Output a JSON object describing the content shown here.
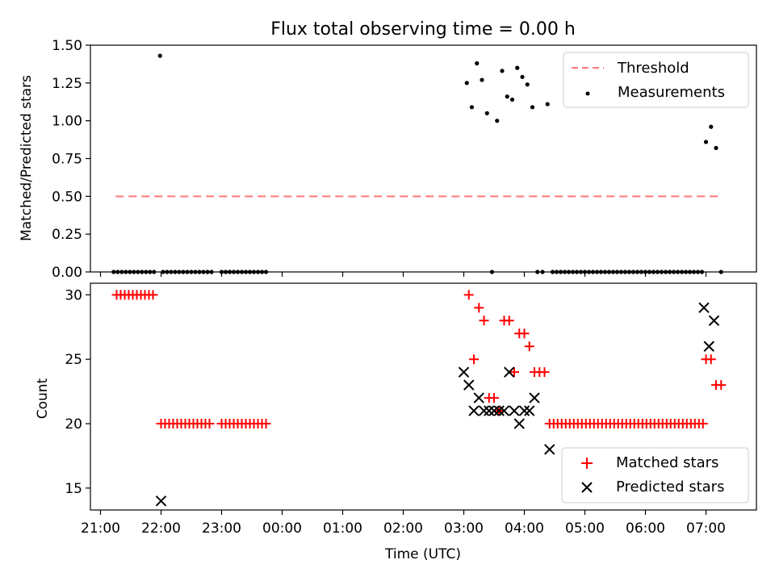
{
  "chart_data": [
    {
      "type": "scatter",
      "title": "Flux total observing time = 0.00 h",
      "xlabel": "",
      "ylabel": "Matched/Predicted stars",
      "ylim": [
        0,
        1.5
      ],
      "yticks": [
        "0.00",
        "0.25",
        "0.50",
        "0.75",
        "1.00",
        "1.25",
        "1.50"
      ],
      "legend_position": "top-right",
      "threshold": {
        "name": "Threshold",
        "value": 0.5,
        "x_start": "21:15",
        "x_end": "07:15",
        "color": "#ff7777"
      },
      "series": [
        {
          "name": "Measurements",
          "color": "#000000",
          "points": [
            [
              "21:13",
              0
            ],
            [
              "21:17",
              0
            ],
            [
              "21:21",
              0
            ],
            [
              "21:25",
              0
            ],
            [
              "21:29",
              0
            ],
            [
              "21:33",
              0
            ],
            [
              "21:37",
              0
            ],
            [
              "21:41",
              0
            ],
            [
              "21:45",
              0
            ],
            [
              "21:49",
              0
            ],
            [
              "21:53",
              0
            ],
            [
              "21:59",
              1.43
            ],
            [
              "22:02",
              0
            ],
            [
              "22:06",
              0
            ],
            [
              "22:10",
              0
            ],
            [
              "22:14",
              0
            ],
            [
              "22:18",
              0
            ],
            [
              "22:22",
              0
            ],
            [
              "22:26",
              0
            ],
            [
              "22:30",
              0
            ],
            [
              "22:34",
              0
            ],
            [
              "22:38",
              0
            ],
            [
              "22:42",
              0
            ],
            [
              "22:46",
              0
            ],
            [
              "22:50",
              0
            ],
            [
              "23:00",
              0
            ],
            [
              "23:04",
              0
            ],
            [
              "23:08",
              0
            ],
            [
              "23:12",
              0
            ],
            [
              "23:16",
              0
            ],
            [
              "23:20",
              0
            ],
            [
              "23:24",
              0
            ],
            [
              "23:28",
              0
            ],
            [
              "23:32",
              0
            ],
            [
              "23:36",
              0
            ],
            [
              "23:40",
              0
            ],
            [
              "23:44",
              0
            ],
            [
              "03:03",
              1.25
            ],
            [
              "03:08",
              1.09
            ],
            [
              "03:13",
              1.38
            ],
            [
              "03:18",
              1.27
            ],
            [
              "03:23",
              1.05
            ],
            [
              "03:28",
              0
            ],
            [
              "03:33",
              1.0
            ],
            [
              "03:38",
              1.33
            ],
            [
              "03:43",
              1.16
            ],
            [
              "03:48",
              1.14
            ],
            [
              "03:53",
              1.35
            ],
            [
              "03:58",
              1.29
            ],
            [
              "04:03",
              1.24
            ],
            [
              "04:08",
              1.09
            ],
            [
              "04:13",
              0
            ],
            [
              "04:18",
              0
            ],
            [
              "04:23",
              1.11
            ],
            [
              "04:28",
              0
            ],
            [
              "04:32",
              0
            ],
            [
              "04:36",
              0
            ],
            [
              "04:40",
              0
            ],
            [
              "04:44",
              0
            ],
            [
              "04:48",
              0
            ],
            [
              "04:52",
              0
            ],
            [
              "04:56",
              0
            ],
            [
              "05:00",
              0
            ],
            [
              "05:04",
              0
            ],
            [
              "05:08",
              0
            ],
            [
              "05:12",
              0
            ],
            [
              "05:16",
              0
            ],
            [
              "05:20",
              0
            ],
            [
              "05:24",
              0
            ],
            [
              "05:28",
              0
            ],
            [
              "05:32",
              0
            ],
            [
              "05:36",
              0
            ],
            [
              "05:40",
              0
            ],
            [
              "05:44",
              0
            ],
            [
              "05:48",
              0
            ],
            [
              "05:52",
              0
            ],
            [
              "05:56",
              0
            ],
            [
              "06:00",
              0
            ],
            [
              "06:04",
              0
            ],
            [
              "06:08",
              0
            ],
            [
              "06:12",
              0
            ],
            [
              "06:16",
              0
            ],
            [
              "06:20",
              0
            ],
            [
              "06:24",
              0
            ],
            [
              "06:28",
              0
            ],
            [
              "06:32",
              0
            ],
            [
              "06:36",
              0
            ],
            [
              "06:40",
              0
            ],
            [
              "06:44",
              0
            ],
            [
              "06:48",
              0
            ],
            [
              "06:52",
              0
            ],
            [
              "06:56",
              0
            ],
            [
              "07:00",
              0.86
            ],
            [
              "07:05",
              0.96
            ],
            [
              "07:10",
              0.82
            ],
            [
              "07:15",
              0
            ]
          ]
        }
      ]
    },
    {
      "type": "scatter",
      "title": "",
      "xlabel": "Time (UTC)",
      "ylabel": "Count",
      "ylim": [
        13.3,
        30.9
      ],
      "yticks": [
        "15",
        "20",
        "25",
        "30"
      ],
      "xlim": [
        "20:50",
        "07:50"
      ],
      "xticks": [
        "21:00",
        "22:00",
        "23:00",
        "00:00",
        "01:00",
        "02:00",
        "03:00",
        "04:00",
        "05:00",
        "06:00",
        "07:00"
      ],
      "legend_position": "bottom-right",
      "series": [
        {
          "name": "Matched stars",
          "marker": "plus",
          "color": "#ff0000",
          "points": [
            [
              "21:16",
              30
            ],
            [
              "21:20",
              30
            ],
            [
              "21:24",
              30
            ],
            [
              "21:28",
              30
            ],
            [
              "21:32",
              30
            ],
            [
              "21:36",
              30
            ],
            [
              "21:40",
              30
            ],
            [
              "21:44",
              30
            ],
            [
              "21:48",
              30
            ],
            [
              "21:52",
              30
            ],
            [
              "22:00",
              20
            ],
            [
              "22:04",
              20
            ],
            [
              "22:08",
              20
            ],
            [
              "22:12",
              20
            ],
            [
              "22:16",
              20
            ],
            [
              "22:20",
              20
            ],
            [
              "22:24",
              20
            ],
            [
              "22:28",
              20
            ],
            [
              "22:32",
              20
            ],
            [
              "22:36",
              20
            ],
            [
              "22:40",
              20
            ],
            [
              "22:44",
              20
            ],
            [
              "22:48",
              20
            ],
            [
              "23:00",
              20
            ],
            [
              "23:04",
              20
            ],
            [
              "23:08",
              20
            ],
            [
              "23:12",
              20
            ],
            [
              "23:16",
              20
            ],
            [
              "23:20",
              20
            ],
            [
              "23:24",
              20
            ],
            [
              "23:28",
              20
            ],
            [
              "23:32",
              20
            ],
            [
              "23:36",
              20
            ],
            [
              "23:40",
              20
            ],
            [
              "23:44",
              20
            ],
            [
              "03:05",
              30
            ],
            [
              "03:10",
              25
            ],
            [
              "03:15",
              29
            ],
            [
              "03:20",
              28
            ],
            [
              "03:25",
              22
            ],
            [
              "03:30",
              22
            ],
            [
              "03:35",
              21
            ],
            [
              "03:40",
              28
            ],
            [
              "03:45",
              28
            ],
            [
              "03:50",
              24
            ],
            [
              "03:55",
              27
            ],
            [
              "04:00",
              27
            ],
            [
              "04:05",
              26
            ],
            [
              "04:10",
              24
            ],
            [
              "04:15",
              24
            ],
            [
              "04:20",
              24
            ],
            [
              "04:25",
              20
            ],
            [
              "04:29",
              20
            ],
            [
              "04:33",
              20
            ],
            [
              "04:37",
              20
            ],
            [
              "04:41",
              20
            ],
            [
              "04:45",
              20
            ],
            [
              "04:49",
              20
            ],
            [
              "04:53",
              20
            ],
            [
              "04:57",
              20
            ],
            [
              "05:01",
              20
            ],
            [
              "05:05",
              20
            ],
            [
              "05:09",
              20
            ],
            [
              "05:13",
              20
            ],
            [
              "05:17",
              20
            ],
            [
              "05:21",
              20
            ],
            [
              "05:25",
              20
            ],
            [
              "05:29",
              20
            ],
            [
              "05:33",
              20
            ],
            [
              "05:37",
              20
            ],
            [
              "05:41",
              20
            ],
            [
              "05:45",
              20
            ],
            [
              "05:49",
              20
            ],
            [
              "05:53",
              20
            ],
            [
              "05:57",
              20
            ],
            [
              "06:01",
              20
            ],
            [
              "06:05",
              20
            ],
            [
              "06:09",
              20
            ],
            [
              "06:13",
              20
            ],
            [
              "06:17",
              20
            ],
            [
              "06:21",
              20
            ],
            [
              "06:25",
              20
            ],
            [
              "06:29",
              20
            ],
            [
              "06:33",
              20
            ],
            [
              "06:37",
              20
            ],
            [
              "06:41",
              20
            ],
            [
              "06:45",
              20
            ],
            [
              "06:49",
              20
            ],
            [
              "06:53",
              20
            ],
            [
              "06:57",
              20
            ],
            [
              "07:00",
              25
            ],
            [
              "07:05",
              25
            ],
            [
              "07:10",
              23
            ],
            [
              "07:15",
              23
            ]
          ]
        },
        {
          "name": "Predicted stars",
          "marker": "x",
          "color": "#000000",
          "points": [
            [
              "22:00",
              14
            ],
            [
              "03:00",
              24
            ],
            [
              "03:05",
              23
            ],
            [
              "03:10",
              21
            ],
            [
              "03:15",
              22
            ],
            [
              "03:20",
              21
            ],
            [
              "03:25",
              21
            ],
            [
              "03:30",
              21
            ],
            [
              "03:35",
              21
            ],
            [
              "03:40",
              21
            ],
            [
              "03:45",
              24
            ],
            [
              "03:50",
              21
            ],
            [
              "03:55",
              20
            ],
            [
              "04:00",
              21
            ],
            [
              "04:05",
              21
            ],
            [
              "04:10",
              22
            ],
            [
              "04:25",
              18
            ],
            [
              "06:58",
              29
            ],
            [
              "07:03",
              26
            ],
            [
              "07:08",
              28
            ]
          ]
        }
      ]
    }
  ]
}
